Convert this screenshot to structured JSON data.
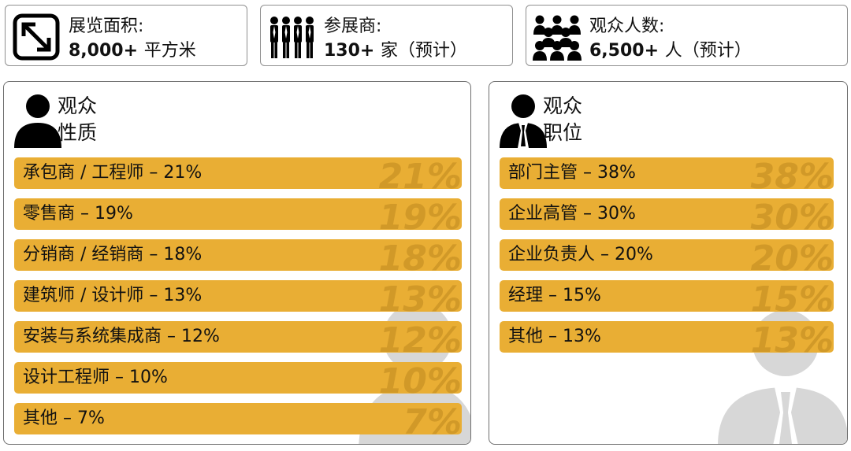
{
  "stats": [
    {
      "label": "展览面积:",
      "value": "8,000+",
      "unit": "平方米",
      "icon": "expand-arrow-icon"
    },
    {
      "label": "参展商:",
      "value": "130+",
      "unit": "家（预计）",
      "icon": "exhibitors-icon"
    },
    {
      "label": "观众人数:",
      "value": "6,500+",
      "unit": "人（预计）",
      "icon": "audience-crowd-icon"
    }
  ],
  "nature": {
    "title_line1": "观众",
    "title_line2": "性质",
    "icon": "person-icon",
    "items": [
      {
        "label": "承包商 / 工程师 – 21%",
        "pct": "21%",
        "value": 21
      },
      {
        "label": "零售商 – 19%",
        "pct": "19%",
        "value": 19
      },
      {
        "label": "分销商 / 经销商 – 18%",
        "pct": "18%",
        "value": 18
      },
      {
        "label": "建筑师 / 设计师 – 13%",
        "pct": "13%",
        "value": 13
      },
      {
        "label": "安装与系统集成商 – 12%",
        "pct": "12%",
        "value": 12
      },
      {
        "label": "设计工程师 – 10%",
        "pct": "10%",
        "value": 10
      },
      {
        "label": "其他 – 7%",
        "pct": "7%",
        "value": 7
      }
    ]
  },
  "position": {
    "title_line1": "观众",
    "title_line2": "职位",
    "icon": "businessman-icon",
    "items": [
      {
        "label": "部门主管 – 38%",
        "pct": "38%",
        "value": 38
      },
      {
        "label": "企业高管 – 30%",
        "pct": "30%",
        "value": 30
      },
      {
        "label": "企业负责人 – 20%",
        "pct": "20%",
        "value": 20
      },
      {
        "label": "经理 – 15%",
        "pct": "15%",
        "value": 15
      },
      {
        "label": "其他 – 13%",
        "pct": "13%",
        "value": 13
      }
    ]
  },
  "colors": {
    "bar": "#e9ae34",
    "big_pct": "#c99224",
    "panel_border": "#6e6e6e"
  }
}
